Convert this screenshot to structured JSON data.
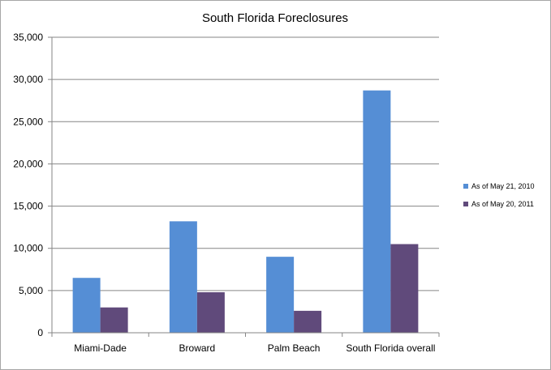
{
  "chart_data": {
    "type": "bar",
    "title": "South  Florida Foreclosures",
    "categories": [
      "Miami-Dade",
      "Broward",
      "Palm Beach",
      "South Florida overall"
    ],
    "series": [
      {
        "name": "As of May 21, 2010",
        "values": [
          6500,
          13200,
          9000,
          28700
        ],
        "color": "#558ed5"
      },
      {
        "name": "As of May 20, 2011",
        "values": [
          3000,
          4800,
          2600,
          10500
        ],
        "color": "#604a7b"
      }
    ],
    "ylim": [
      0,
      35000
    ],
    "yticks": [
      0,
      5000,
      10000,
      15000,
      20000,
      25000,
      30000,
      35000
    ],
    "ytick_labels": [
      "0",
      "5,000",
      "10,000",
      "15,000",
      "20,000",
      "25,000",
      "30,000",
      "35,000"
    ],
    "xlabel": "",
    "ylabel": "",
    "grid": true,
    "legend_position": "right"
  }
}
